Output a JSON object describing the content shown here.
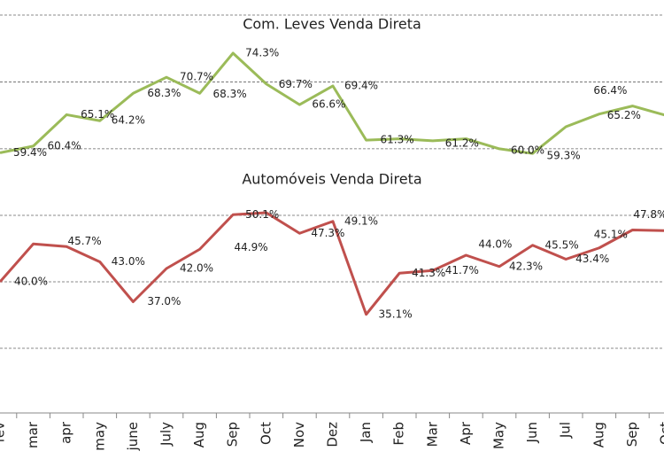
{
  "chart_data": [
    {
      "type": "line",
      "title": "Com. Leves Venda Direta",
      "categories": [
        "fev",
        "mar",
        "apr",
        "may",
        "june",
        "July",
        "Aug",
        "Sep",
        "Oct",
        "Nov",
        "Dez",
        "Jan",
        "Feb",
        "Mar",
        "Apr",
        "May",
        "Jun",
        "Jul",
        "Aug",
        "Sep",
        "Oct"
      ],
      "series": [
        {
          "name": "Com. Leves Venda Direta",
          "color": "#9bbb59",
          "values": [
            59.4,
            60.4,
            65.1,
            64.2,
            68.3,
            70.7,
            68.3,
            74.3,
            69.7,
            66.6,
            69.4,
            61.3,
            61.5,
            61.2,
            61.5,
            60.0,
            59.3,
            63.3,
            65.2,
            66.4,
            65.0
          ],
          "value_labels": [
            "59.4%",
            "60.4%",
            "65.1%",
            "64.2%",
            "68.3%",
            "70.7%",
            "68.3%",
            "74.3%",
            "69.7%",
            "66.6%",
            "69.4%",
            "61.3%",
            null,
            "61.2%",
            null,
            "60.0%",
            "59.3%",
            null,
            "65.2%",
            "66.4%",
            null
          ]
        }
      ],
      "ylim": [
        58,
        80
      ],
      "yticks": [
        60,
        70,
        80
      ],
      "grid": true
    },
    {
      "type": "line",
      "title": "Automóveis Venda Direta",
      "series": [
        {
          "name": "Automóveis Venda Direta",
          "color": "#c0504d",
          "values": [
            40.0,
            45.7,
            45.3,
            43.0,
            37.0,
            42.0,
            44.9,
            50.1,
            50.4,
            47.3,
            49.1,
            35.1,
            41.3,
            41.7,
            44.0,
            42.3,
            45.5,
            43.4,
            45.1,
            47.8,
            47.7
          ],
          "value_labels": [
            "40.0%",
            "45.7%",
            null,
            "43.0%",
            "37.0%",
            "42.0%",
            "44.9%",
            "50.1%",
            null,
            "47.3%",
            "49.1%",
            "35.1%",
            "41.3%",
            "41.7%",
            "44.0%",
            "42.3%",
            "45.5%",
            "43.4%",
            "45.1%",
            "47.8%",
            null
          ]
        }
      ],
      "ylim": [
        30,
        50
      ],
      "yticks": [
        30,
        40,
        50
      ],
      "grid": true
    }
  ]
}
